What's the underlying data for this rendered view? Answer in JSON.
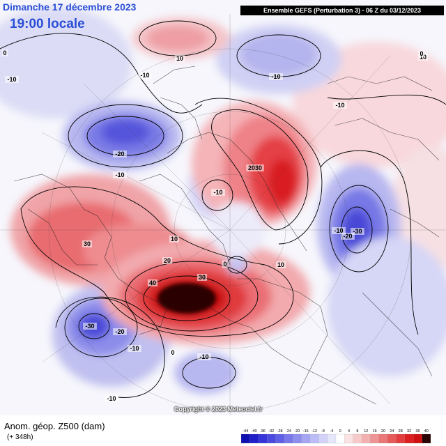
{
  "header": {
    "date_line": "Dimanche 17 décembre 2023",
    "time_line": "19:00 locale",
    "model_info": "Ensemble GEFS  (Perturbation 3)  -  06 Z du 03/12/2023"
  },
  "footer": {
    "title": "Anom. géop. Z500 (dam)",
    "lead_time": "(+ 348h)",
    "copyright": "Copyright © 2023 Meteociel.fr"
  },
  "legend": {
    "ticks": [
      "-44",
      "-40",
      "-36",
      "-32",
      "-28",
      "-24",
      "-20",
      "-16",
      "-12",
      "-8",
      "-4",
      "0",
      "4",
      "8",
      "12",
      "16",
      "20",
      "24",
      "28",
      "32",
      "36",
      "40"
    ],
    "colors": [
      "#1010b0",
      "#2020c8",
      "#3535d8",
      "#4a4ae0",
      "#6060e6",
      "#7878ea",
      "#8e8eee",
      "#a6a6f2",
      "#bcbcf6",
      "#d2d2f8",
      "#e6e6fb",
      "#ffffff",
      "#fbe2e2",
      "#f7caca",
      "#f3b0b0",
      "#ef9494",
      "#ea7878",
      "#e65a5a",
      "#e23c3c",
      "#dc2020",
      "#d01010",
      "#2a0404"
    ]
  },
  "contour_labels": [
    {
      "text": "-10"
    },
    {
      "text": "-10"
    },
    {
      "text": "-20"
    },
    {
      "text": "-10"
    },
    {
      "text": "-10"
    },
    {
      "text": "-10"
    },
    {
      "text": "-10"
    },
    {
      "text": "-30"
    },
    {
      "text": "-20"
    },
    {
      "text": "-10"
    },
    {
      "text": "-30"
    },
    {
      "text": "-20"
    },
    {
      "text": "-10"
    },
    {
      "text": "-10"
    },
    {
      "text": "-10"
    },
    {
      "text": "0"
    },
    {
      "text": "0"
    },
    {
      "text": "0"
    },
    {
      "text": "10"
    },
    {
      "text": "10"
    },
    {
      "text": "20"
    },
    {
      "text": "30"
    },
    {
      "text": "40"
    },
    {
      "text": "30"
    },
    {
      "text": "2030"
    },
    {
      "text": "10"
    },
    {
      "text": "10"
    },
    {
      "text": "0"
    }
  ]
}
